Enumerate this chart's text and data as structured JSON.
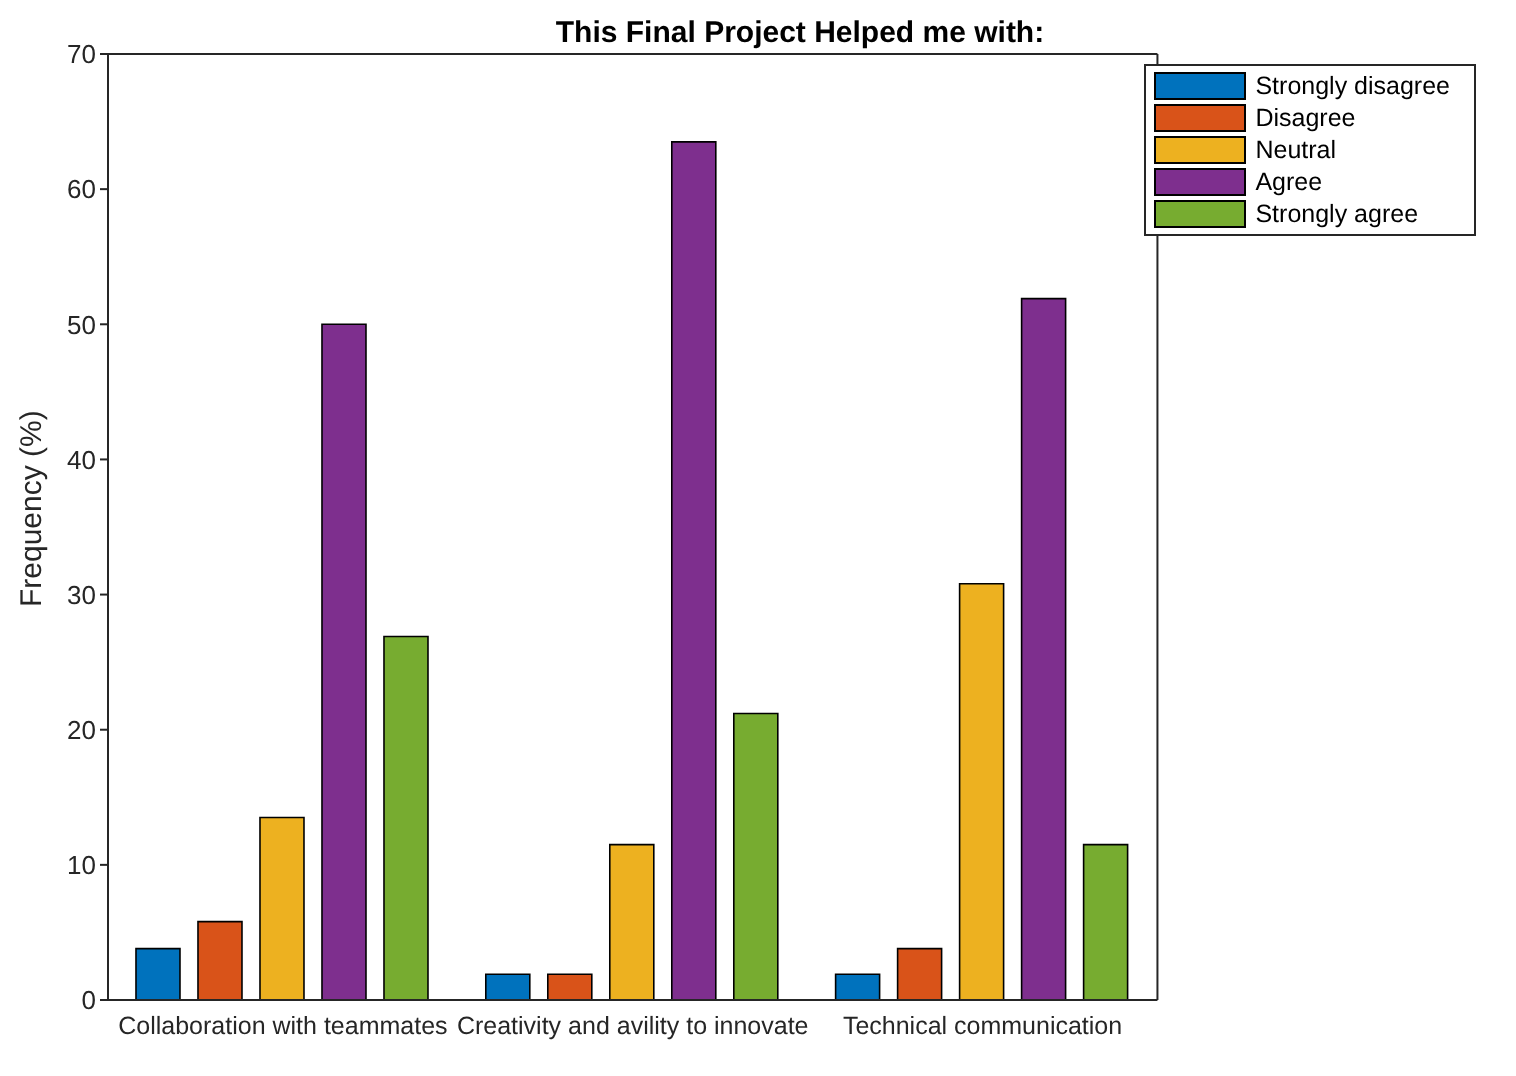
{
  "chart_data": {
    "type": "bar",
    "title": "This Final Project Helped me with:",
    "ylabel": "Frequency (%)",
    "categories": [
      "Collaboration with teammates",
      "Creativity and avility to innovate",
      "Technical communication"
    ],
    "series": [
      {
        "name": "Strongly disagree",
        "color": "#0072bd",
        "values": [
          3.8,
          1.9,
          1.9
        ]
      },
      {
        "name": "Disagree",
        "color": "#d95319",
        "values": [
          5.8,
          1.9,
          3.8
        ]
      },
      {
        "name": "Neutral",
        "color": "#edb120",
        "values": [
          13.5,
          11.5,
          30.8
        ]
      },
      {
        "name": "Agree",
        "color": "#7e2f8e",
        "values": [
          50,
          63.5,
          51.9
        ]
      },
      {
        "name": "Strongly agree",
        "color": "#77ac30",
        "values": [
          26.9,
          21.2,
          11.5
        ]
      }
    ],
    "ylim": [
      0,
      70
    ],
    "yticks": [
      0,
      10,
      20,
      30,
      40,
      50,
      60,
      70
    ],
    "grid": false,
    "legend": "top right"
  }
}
